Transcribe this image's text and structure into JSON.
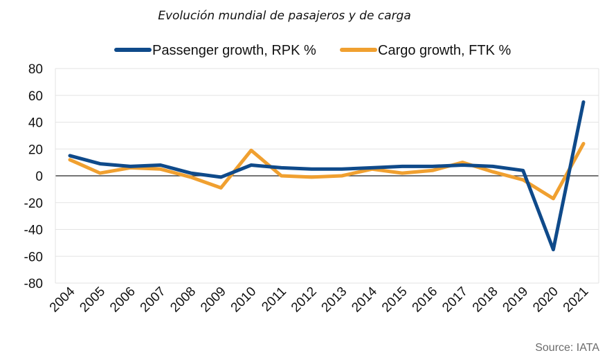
{
  "chart_data": {
    "type": "line",
    "title": "Evolución mundial de pasajeros y de carga",
    "source": "Source: IATA",
    "categories": [
      "2004",
      "2005",
      "2006",
      "2007",
      "2008",
      "2009",
      "2010",
      "2011",
      "2012",
      "2013",
      "2014",
      "2015",
      "2016",
      "2017",
      "2018",
      "2019",
      "2020",
      "2021"
    ],
    "series": [
      {
        "name": "Passenger growth, RPK %",
        "color": "#0f4a8a",
        "values": [
          15,
          9,
          7,
          8,
          2,
          -1,
          8,
          6,
          5,
          5,
          6,
          7,
          7,
          8,
          7,
          4,
          -55,
          55
        ]
      },
      {
        "name": "Cargo growth, FTK %",
        "color": "#f0a030",
        "values": [
          12,
          2,
          6,
          5,
          -1,
          -9,
          19,
          0,
          -1,
          0,
          5,
          2,
          4,
          10,
          3,
          -3,
          -17,
          24
        ]
      }
    ],
    "ylim": [
      -80,
      80
    ],
    "yticks": [
      80,
      60,
      40,
      20,
      0,
      -20,
      -40,
      -60,
      -80
    ],
    "ytick_labels": [
      "80",
      "60",
      "40",
      "20",
      "0",
      "-20",
      "-40",
      "-60",
      "-80"
    ],
    "grid": true,
    "legend_position": "top",
    "xlabel": "",
    "ylabel": ""
  }
}
